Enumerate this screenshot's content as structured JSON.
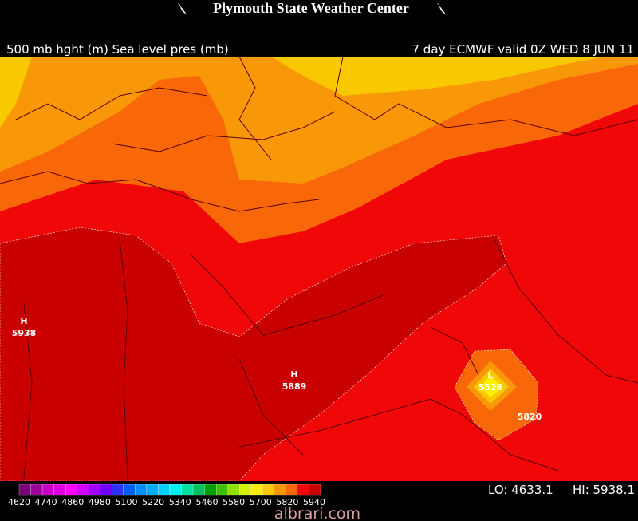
{
  "header": {
    "title": "Plymouth State Weather Center"
  },
  "map": {
    "left_caption": "500 mb hght (m) Sea level pres (mb)",
    "right_caption": "7 day ECMWF valid 0Z WED 8 JUN 11",
    "centers": [
      {
        "kind": "H",
        "value": "5938"
      },
      {
        "kind": "H",
        "value": "5889"
      },
      {
        "kind": "L",
        "value": "5526"
      }
    ],
    "contour_label": "5820"
  },
  "colorbar": {
    "ticks": [
      "4620",
      "4740",
      "4860",
      "4980",
      "5100",
      "5220",
      "5340",
      "5460",
      "5580",
      "5700",
      "5820",
      "5940"
    ]
  },
  "stats": {
    "lo": "LO: 4633.1",
    "hi": "HI: 5938.1"
  },
  "watermark": "albrari.com"
}
